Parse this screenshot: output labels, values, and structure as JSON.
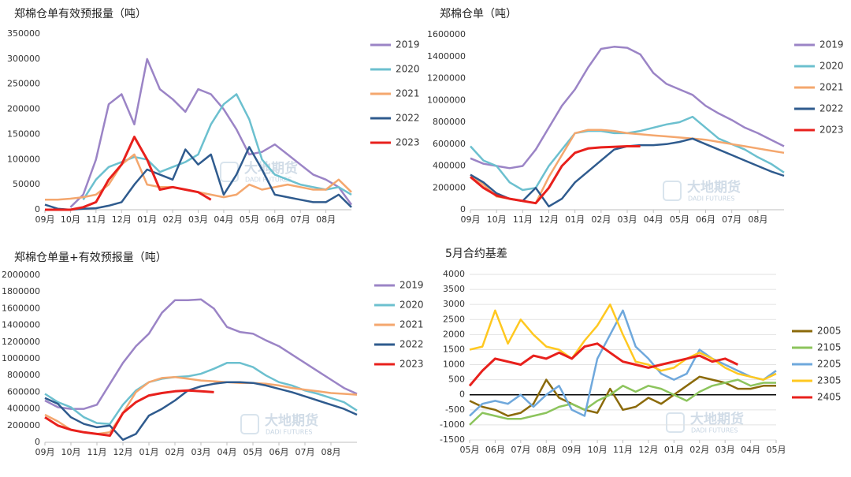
{
  "chart_data": [
    {
      "type": "line",
      "title": "郑棉仓单有效预报量（吨）",
      "watermark": "大地期货",
      "watermark_sub": "DADI FUTURES",
      "categories": [
        "09月",
        null,
        "10月",
        null,
        "11月",
        null,
        "12月",
        null,
        "01月",
        null,
        "02月",
        null,
        "03月",
        null,
        "04月",
        null,
        "05月",
        null,
        "06月",
        null,
        "07月",
        null,
        "08月",
        null,
        null
      ],
      "ylim": [
        0,
        350000
      ],
      "yticks": [
        0,
        50000,
        100000,
        150000,
        200000,
        250000,
        300000,
        350000
      ],
      "grid": false,
      "legend": "right",
      "series": [
        {
          "name": "2019",
          "color": "#9b84c6",
          "values": [
            null,
            null,
            5000,
            30000,
            100000,
            210000,
            230000,
            170000,
            300000,
            240000,
            220000,
            195000,
            240000,
            230000,
            200000,
            160000,
            110000,
            115000,
            130000,
            110000,
            90000,
            70000,
            60000,
            45000,
            10000
          ]
        },
        {
          "name": "2020",
          "color": "#6cc0cf",
          "values": [
            null,
            null,
            null,
            20000,
            60000,
            85000,
            95000,
            105000,
            100000,
            75000,
            85000,
            95000,
            110000,
            170000,
            210000,
            230000,
            180000,
            100000,
            70000,
            60000,
            50000,
            45000,
            40000,
            45000,
            30000
          ]
        },
        {
          "name": "2021",
          "color": "#f4a76e",
          "values": [
            20000,
            20000,
            22000,
            25000,
            30000,
            50000,
            90000,
            110000,
            50000,
            45000,
            45000,
            40000,
            35000,
            30000,
            25000,
            30000,
            50000,
            40000,
            45000,
            50000,
            45000,
            40000,
            40000,
            60000,
            35000
          ]
        },
        {
          "name": "2022",
          "color": "#2f5b8e",
          "values": [
            10000,
            2000,
            0,
            2000,
            3000,
            8000,
            15000,
            50000,
            80000,
            70000,
            60000,
            120000,
            90000,
            110000,
            30000,
            70000,
            125000,
            80000,
            30000,
            25000,
            20000,
            15000,
            15000,
            30000,
            5000
          ]
        },
        {
          "name": "2023",
          "color": "#e8201c",
          "values": [
            0,
            0,
            0,
            5000,
            15000,
            60000,
            90000,
            145000,
            100000,
            40000,
            45000,
            40000,
            35000,
            20000,
            null,
            null,
            null,
            null,
            null,
            null,
            null,
            null,
            null,
            null,
            null
          ]
        }
      ]
    },
    {
      "type": "line",
      "title": "郑棉仓单（吨）",
      "watermark": "大地期货",
      "watermark_sub": "DADI FUTURES",
      "categories": [
        "09月",
        null,
        "10月",
        null,
        "11月",
        null,
        "12月",
        null,
        "01月",
        null,
        "02月",
        null,
        "03月",
        null,
        "04月",
        null,
        "05月",
        null,
        "06月",
        null,
        "07月",
        null,
        "08月",
        null,
        null
      ],
      "ylim": [
        0,
        1600000
      ],
      "yticks": [
        0,
        200000,
        400000,
        600000,
        800000,
        1000000,
        1200000,
        1400000,
        1600000
      ],
      "grid": false,
      "legend": "right",
      "series": [
        {
          "name": "2019",
          "color": "#9b84c6",
          "values": [
            470000,
            420000,
            400000,
            380000,
            400000,
            550000,
            750000,
            950000,
            1100000,
            1300000,
            1470000,
            1490000,
            1480000,
            1420000,
            1250000,
            1150000,
            1100000,
            1050000,
            950000,
            880000,
            820000,
            750000,
            700000,
            640000,
            580000
          ]
        },
        {
          "name": "2020",
          "color": "#6cc0cf",
          "values": [
            580000,
            450000,
            400000,
            250000,
            180000,
            200000,
            400000,
            550000,
            700000,
            720000,
            720000,
            700000,
            700000,
            720000,
            750000,
            780000,
            800000,
            850000,
            750000,
            650000,
            600000,
            550000,
            480000,
            420000,
            340000
          ]
        },
        {
          "name": "2021",
          "color": "#f4a76e",
          "values": [
            320000,
            230000,
            120000,
            100000,
            80000,
            60000,
            300000,
            500000,
            700000,
            730000,
            730000,
            720000,
            700000,
            690000,
            680000,
            670000,
            660000,
            650000,
            640000,
            620000,
            600000,
            580000,
            560000,
            540000,
            520000
          ]
        },
        {
          "name": "2022",
          "color": "#2f5b8e",
          "values": [
            320000,
            250000,
            150000,
            100000,
            80000,
            200000,
            30000,
            100000,
            250000,
            350000,
            450000,
            550000,
            580000,
            590000,
            590000,
            600000,
            620000,
            650000,
            600000,
            550000,
            500000,
            450000,
            400000,
            350000,
            310000
          ]
        },
        {
          "name": "2023",
          "color": "#e8201c",
          "values": [
            300000,
            200000,
            130000,
            100000,
            80000,
            60000,
            200000,
            400000,
            520000,
            560000,
            570000,
            575000,
            580000,
            580000,
            null,
            null,
            null,
            null,
            null,
            null,
            null,
            null,
            null,
            null,
            null
          ]
        }
      ]
    },
    {
      "type": "line",
      "title": "郑棉仓单量+有效预报量（吨）",
      "watermark": "大地期货",
      "watermark_sub": "DADI FUTURES",
      "categories": [
        "09月",
        null,
        "10月",
        null,
        "11月",
        null,
        "12月",
        null,
        "01月",
        null,
        "02月",
        null,
        "03月",
        null,
        "04月",
        null,
        "05月",
        null,
        "06月",
        null,
        "07月",
        null,
        "08月",
        null,
        null
      ],
      "ylim": [
        0,
        2000000
      ],
      "yticks": [
        0,
        200000,
        400000,
        600000,
        800000,
        1000000,
        1200000,
        1400000,
        1600000,
        1800000,
        2000000
      ],
      "grid": false,
      "legend": "right",
      "series": [
        {
          "name": "2019",
          "color": "#9b84c6",
          "values": [
            500000,
            420000,
            400000,
            400000,
            450000,
            700000,
            950000,
            1150000,
            1300000,
            1550000,
            1700000,
            1700000,
            1710000,
            1600000,
            1380000,
            1320000,
            1300000,
            1220000,
            1150000,
            1050000,
            950000,
            850000,
            750000,
            650000,
            580000
          ]
        },
        {
          "name": "2020",
          "color": "#6cc0cf",
          "values": [
            580000,
            480000,
            420000,
            300000,
            230000,
            220000,
            450000,
            620000,
            720000,
            760000,
            780000,
            790000,
            820000,
            880000,
            950000,
            950000,
            900000,
            800000,
            720000,
            680000,
            620000,
            580000,
            530000,
            480000,
            380000
          ]
        },
        {
          "name": "2021",
          "color": "#f4a76e",
          "values": [
            330000,
            250000,
            150000,
            120000,
            100000,
            120000,
            350000,
            600000,
            720000,
            770000,
            780000,
            760000,
            740000,
            730000,
            720000,
            710000,
            710000,
            700000,
            680000,
            650000,
            630000,
            610000,
            590000,
            580000,
            570000
          ]
        },
        {
          "name": "2022",
          "color": "#2f5b8e",
          "values": [
            530000,
            460000,
            300000,
            220000,
            180000,
            200000,
            30000,
            100000,
            320000,
            400000,
            500000,
            620000,
            670000,
            700000,
            720000,
            720000,
            710000,
            680000,
            640000,
            600000,
            550000,
            500000,
            450000,
            400000,
            330000
          ]
        },
        {
          "name": "2023",
          "color": "#e8201c",
          "values": [
            300000,
            200000,
            150000,
            120000,
            100000,
            80000,
            350000,
            480000,
            560000,
            590000,
            610000,
            620000,
            610000,
            600000,
            null,
            null,
            null,
            null,
            null,
            null,
            null,
            null,
            null,
            null,
            null
          ]
        }
      ]
    },
    {
      "type": "line",
      "title": "5月合约基差",
      "watermark": "大地期货",
      "watermark_sub": "DADI FUTURES",
      "categories": [
        "05月",
        null,
        "06月",
        null,
        "07月",
        null,
        "08月",
        null,
        "09月",
        null,
        "10月",
        null,
        "11月",
        null,
        "12月",
        null,
        "01月",
        null,
        "02月",
        null,
        "03月",
        null,
        "04月",
        null,
        "05月"
      ],
      "ylim": [
        -1500,
        4000
      ],
      "yticks": [
        -1500,
        -1000,
        -500,
        0,
        500,
        1000,
        1500,
        2000,
        2500,
        3000,
        3500,
        4000
      ],
      "grid": true,
      "legend": "right",
      "series": [
        {
          "name": "2005",
          "color": "#8b6a0a",
          "values": [
            -200,
            -400,
            -500,
            -700,
            -600,
            -300,
            500,
            -100,
            -300,
            -500,
            -600,
            200,
            -500,
            -400,
            -100,
            -300,
            0,
            300,
            600,
            500,
            400,
            200,
            200,
            300,
            300
          ]
        },
        {
          "name": "2105",
          "color": "#8cc45c",
          "values": [
            -1000,
            -600,
            -700,
            -800,
            -800,
            -700,
            -600,
            -400,
            -300,
            -500,
            -200,
            0,
            300,
            100,
            300,
            200,
            0,
            -200,
            100,
            300,
            400,
            500,
            300,
            400,
            400
          ]
        },
        {
          "name": "2205",
          "color": "#6fa8dc",
          "values": [
            -700,
            -300,
            -200,
            -300,
            0,
            -400,
            0,
            300,
            -500,
            -700,
            1200,
            2000,
            2800,
            1600,
            1200,
            700,
            500,
            700,
            1500,
            1200,
            1000,
            800,
            600,
            500,
            800
          ]
        },
        {
          "name": "2305",
          "color": "#ffc820",
          "values": [
            1500,
            1600,
            2800,
            1700,
            2500,
            2000,
            1600,
            1500,
            1200,
            1800,
            2300,
            3000,
            2000,
            1100,
            1000,
            800,
            900,
            1200,
            1400,
            1200,
            900,
            700,
            600,
            500,
            700
          ]
        },
        {
          "name": "2405",
          "color": "#e8201c",
          "values": [
            300,
            800,
            1200,
            1100,
            1000,
            1300,
            1200,
            1400,
            1200,
            1600,
            1700,
            1400,
            1100,
            1000,
            900,
            1000,
            1100,
            1200,
            1300,
            1100,
            1200,
            1000,
            null,
            null,
            null
          ]
        }
      ]
    }
  ]
}
